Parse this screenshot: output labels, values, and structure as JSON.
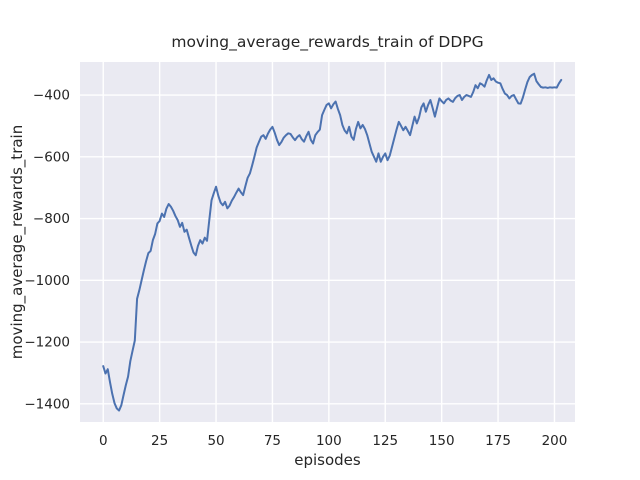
{
  "chart_data": {
    "type": "line",
    "title": "moving_average_rewards_train of DDPG",
    "xlabel": "episodes",
    "ylabel": "moving_average_rewards_train",
    "x_ticks": [
      0,
      25,
      50,
      75,
      100,
      125,
      150,
      175,
      200
    ],
    "y_ticks": [
      -400,
      -600,
      -800,
      -1000,
      -1200,
      -1400
    ],
    "xlim": [
      -10.3,
      209.1
    ],
    "ylim": [
      -1459,
      -293
    ],
    "grid": true,
    "legend": "none",
    "style": "seaborn-darkgrid",
    "colors": {
      "line": "#4c72b0",
      "axes_background": "#eaeaf2",
      "grid": "#ffffff",
      "text": "#262626",
      "figure_background": "#ffffff"
    },
    "series": [
      {
        "name": "moving_average_rewards_train",
        "x_start": 0,
        "x_step": 1,
        "y": [
          -1278,
          -1302,
          -1288,
          -1330,
          -1368,
          -1398,
          -1415,
          -1422,
          -1405,
          -1372,
          -1340,
          -1312,
          -1262,
          -1228,
          -1195,
          -1060,
          -1032,
          -1000,
          -968,
          -938,
          -912,
          -905,
          -870,
          -850,
          -816,
          -808,
          -784,
          -795,
          -768,
          -753,
          -762,
          -775,
          -792,
          -805,
          -827,
          -814,
          -843,
          -836,
          -862,
          -887,
          -910,
          -919,
          -888,
          -870,
          -881,
          -862,
          -872,
          -805,
          -741,
          -718,
          -697,
          -726,
          -748,
          -757,
          -746,
          -767,
          -758,
          -742,
          -730,
          -716,
          -703,
          -715,
          -724,
          -695,
          -668,
          -654,
          -628,
          -600,
          -570,
          -552,
          -535,
          -530,
          -542,
          -525,
          -512,
          -503,
          -522,
          -545,
          -562,
          -552,
          -538,
          -530,
          -524,
          -526,
          -537,
          -546,
          -536,
          -530,
          -543,
          -551,
          -533,
          -519,
          -545,
          -557,
          -530,
          -520,
          -512,
          -465,
          -448,
          -432,
          -427,
          -443,
          -430,
          -421,
          -445,
          -465,
          -497,
          -515,
          -524,
          -503,
          -535,
          -545,
          -510,
          -487,
          -508,
          -497,
          -510,
          -530,
          -557,
          -584,
          -600,
          -616,
          -589,
          -616,
          -600,
          -589,
          -611,
          -596,
          -568,
          -540,
          -512,
          -487,
          -500,
          -514,
          -503,
          -516,
          -530,
          -500,
          -470,
          -492,
          -472,
          -440,
          -427,
          -454,
          -432,
          -416,
          -442,
          -470,
          -440,
          -411,
          -420,
          -427,
          -416,
          -411,
          -418,
          -422,
          -410,
          -403,
          -400,
          -416,
          -406,
          -400,
          -403,
          -406,
          -390,
          -368,
          -378,
          -362,
          -366,
          -373,
          -352,
          -335,
          -351,
          -346,
          -356,
          -360,
          -362,
          -380,
          -395,
          -400,
          -411,
          -403,
          -400,
          -414,
          -427,
          -428,
          -408,
          -382,
          -358,
          -342,
          -335,
          -331,
          -355,
          -365,
          -374,
          -376,
          -375,
          -377,
          -375,
          -376,
          -375,
          -376,
          -362,
          -351
        ]
      }
    ]
  }
}
